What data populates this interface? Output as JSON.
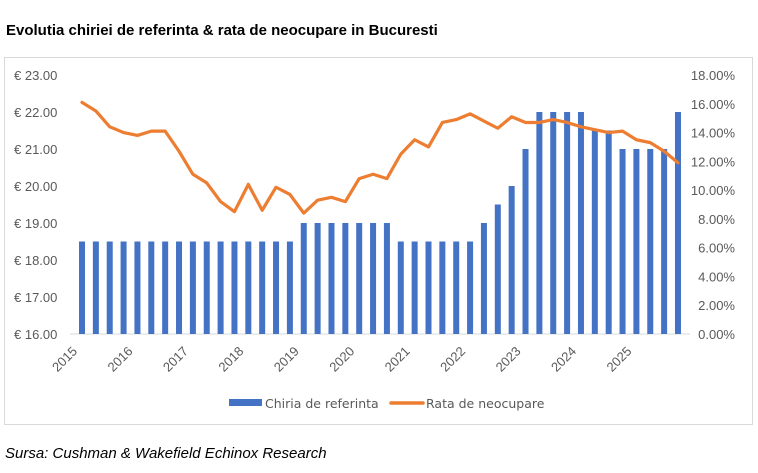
{
  "title": "Evolutia chiriei de referinta & rata de neocupare in Bucuresti",
  "source": "Sursa: Cushman & Wakefield Echinox Research",
  "chart_data": {
    "type": "bar+line",
    "title": "Evolutia chiriei de referinta & rata de neocupare in Bucuresti",
    "x_tick_labels": [
      "2015",
      "2016",
      "2017",
      "2018",
      "2019",
      "2020",
      "2021",
      "2022",
      "2023",
      "2024",
      "2025"
    ],
    "periods_per_year": 4,
    "left_axis": {
      "ylim": [
        16,
        23
      ],
      "ticks": [
        "€ 16.00",
        "€ 17.00",
        "€ 18.00",
        "€ 19.00",
        "€ 20.00",
        "€ 21.00",
        "€ 22.00",
        "€ 23.00"
      ],
      "tick_values": [
        16,
        17,
        18,
        19,
        20,
        21,
        22,
        23
      ]
    },
    "right_axis": {
      "ylim": [
        0,
        18
      ],
      "ticks": [
        "0.00%",
        "2.00%",
        "4.00%",
        "6.00%",
        "8.00%",
        "10.00%",
        "12.00%",
        "14.00%",
        "16.00%",
        "18.00%"
      ],
      "tick_values": [
        0,
        2,
        4,
        6,
        8,
        10,
        12,
        14,
        16,
        18
      ]
    },
    "legend_position": "bottom",
    "grid": false,
    "series": [
      {
        "name": "Chiria de referinta",
        "type": "bar",
        "axis": "left",
        "color": "#4472c4",
        "values": [
          18.5,
          18.5,
          18.5,
          18.5,
          18.5,
          18.5,
          18.5,
          18.5,
          18.5,
          18.5,
          18.5,
          18.5,
          18.5,
          18.5,
          18.5,
          18.5,
          19,
          19,
          19,
          19,
          19,
          19,
          19,
          18.5,
          18.5,
          18.5,
          18.5,
          18.5,
          18.5,
          19,
          19.5,
          20,
          21,
          22,
          22,
          22,
          22,
          21.5,
          21.5,
          21,
          21,
          21,
          21,
          22
        ]
      },
      {
        "name": "Rata de neocupare",
        "type": "line",
        "axis": "right",
        "color": "#ed7d31",
        "values": [
          16.1,
          15.5,
          14.4,
          14.0,
          13.8,
          14.1,
          14.1,
          12.7,
          11.1,
          10.5,
          9.2,
          8.5,
          10.4,
          8.6,
          10.2,
          9.7,
          8.4,
          9.3,
          9.5,
          9.2,
          10.8,
          11.1,
          10.8,
          12.5,
          13.5,
          13.0,
          14.7,
          14.9,
          15.3,
          14.8,
          14.3,
          15.1,
          14.7,
          14.7,
          14.9,
          14.7,
          14.4,
          14.2,
          14.0,
          14.1,
          13.5,
          13.3,
          12.7,
          11.9
        ]
      }
    ]
  }
}
